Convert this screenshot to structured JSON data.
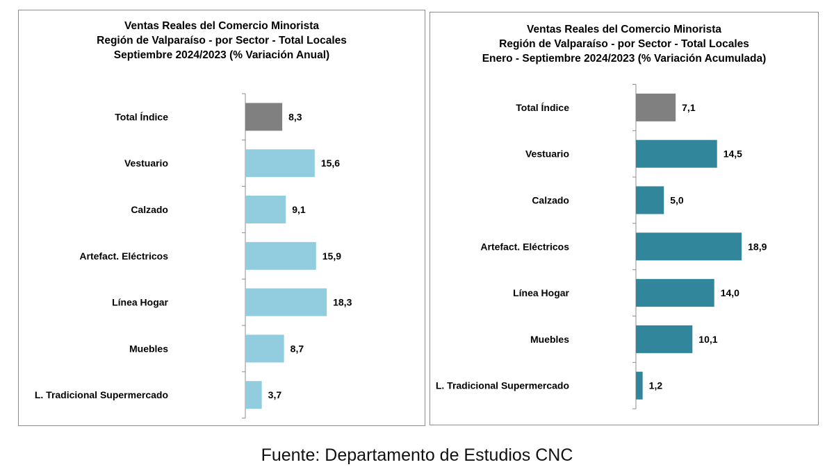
{
  "source_note": "Fuente: Departamento de Estudios CNC",
  "chart_data": [
    {
      "type": "bar",
      "orientation": "horizontal",
      "title": "Ventas Reales del Comercio Minorista",
      "title_lines": [
        "Ventas Reales del Comercio Minorista",
        "Región de Valparaíso - por Sector - Total Locales",
        "Septiembre 2024/2023 (% Variación Anual)"
      ],
      "categories": [
        "Total Índice",
        "Vestuario",
        "Calzado",
        "Artefact. Eléctricos",
        "Línea Hogar",
        "Muebles",
        "L. Tradicional Supermercado"
      ],
      "value_labels": [
        "8,3",
        "15,6",
        "9,1",
        "15,9",
        "18,3",
        "8,7",
        "3,7"
      ],
      "values": [
        8.3,
        15.6,
        9.1,
        15.9,
        18.3,
        8.7,
        3.7
      ],
      "colors": [
        "#808080",
        "#92CDDF",
        "#92CDDF",
        "#92CDDF",
        "#92CDDF",
        "#92CDDF",
        "#92CDDF"
      ],
      "xlim": [
        0,
        20
      ],
      "grid": false,
      "legend": "none"
    },
    {
      "type": "bar",
      "orientation": "horizontal",
      "title": "Ventas Reales del Comercio Minorista",
      "title_lines": [
        "Ventas Reales del Comercio Minorista",
        "Región de Valparaíso - por Sector  - Total Locales",
        "Enero - Septiembre 2024/2023 (% Variación Acumulada)"
      ],
      "categories": [
        "Total Índice",
        "Vestuario",
        "Calzado",
        "Artefact. Eléctricos",
        "Línea Hogar",
        "Muebles",
        "L. Tradicional Supermercado"
      ],
      "value_labels": [
        "7,1",
        "14,5",
        "5,0",
        "18,9",
        "14,0",
        "10,1",
        "1,2"
      ],
      "values": [
        7.1,
        14.5,
        5.0,
        18.9,
        14.0,
        10.1,
        1.2
      ],
      "colors": [
        "#808080",
        "#31869B",
        "#31869B",
        "#31869B",
        "#31869B",
        "#31869B",
        "#31869B"
      ],
      "xlim": [
        0,
        20
      ],
      "grid": false,
      "legend": "none"
    }
  ]
}
